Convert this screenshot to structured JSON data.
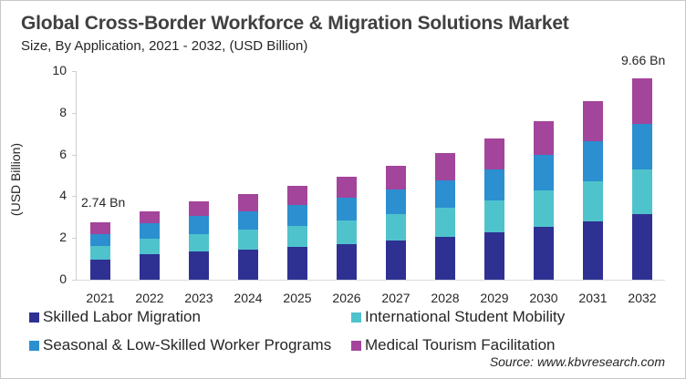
{
  "chart_data": {
    "type": "bar",
    "stacked": true,
    "title": "Global Cross-Border Workforce & Migration Solutions Market",
    "subtitle": "Size, By Application, 2021 - 2032, (USD Billion)",
    "xlabel": "",
    "ylabel": "(USD Billion)",
    "ylim": [
      0,
      10
    ],
    "yticks": [
      "0",
      "2",
      "4",
      "6",
      "8",
      "10"
    ],
    "grid": false,
    "legend_position": "bottom",
    "categories": [
      "2021",
      "2022",
      "2023",
      "2024",
      "2025",
      "2026",
      "2027",
      "2028",
      "2029",
      "2030",
      "2031",
      "2032"
    ],
    "series": [
      {
        "name": "Skilled Labor Migration",
        "color": "#2e3192",
        "values": [
          0.95,
          1.21,
          1.35,
          1.43,
          1.57,
          1.72,
          1.86,
          2.04,
          2.27,
          2.52,
          2.79,
          3.14
        ]
      },
      {
        "name": "International Student Mobility",
        "color": "#4fc3cc",
        "values": [
          0.66,
          0.76,
          0.84,
          0.97,
          1.02,
          1.14,
          1.27,
          1.4,
          1.53,
          1.75,
          1.93,
          2.16
        ]
      },
      {
        "name": "Seasonal & Low-Skilled Worker Programs",
        "color": "#2b8fd0",
        "values": [
          0.59,
          0.73,
          0.86,
          0.89,
          0.98,
          1.09,
          1.21,
          1.34,
          1.48,
          1.7,
          1.9,
          2.18
        ]
      },
      {
        "name": "Medical Tourism Facilitation",
        "color": "#a3459b",
        "values": [
          0.54,
          0.58,
          0.71,
          0.8,
          0.92,
          0.98,
          1.11,
          1.28,
          1.5,
          1.62,
          1.92,
          2.18
        ]
      }
    ],
    "annotations": [
      {
        "category": "2021",
        "text": "2.74 Bn"
      },
      {
        "category": "2032",
        "text": "9.66 Bn"
      }
    ],
    "source": "Source: www.kbvresearch.com"
  }
}
